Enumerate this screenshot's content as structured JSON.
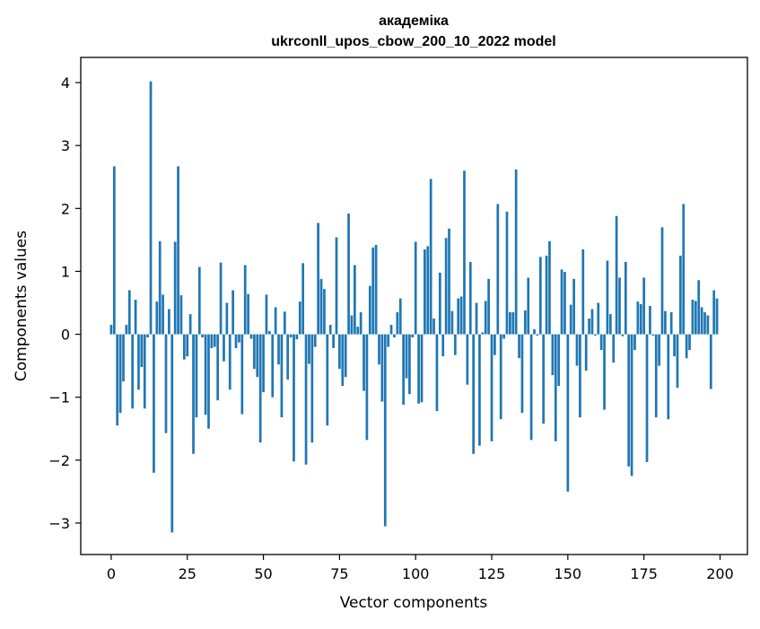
{
  "chart_data": {
    "type": "bar",
    "title_line1": "академіка",
    "title_line2": "ukrconll_upos_cbow_200_10_2022 model",
    "xlabel": "Vector components",
    "ylabel": "Components values",
    "xlim": [
      -10,
      209
    ],
    "ylim": [
      -3.5,
      4.4
    ],
    "xticks": [
      0,
      25,
      50,
      75,
      100,
      125,
      150,
      175,
      200
    ],
    "xtick_labels": [
      "0",
      "25",
      "50",
      "75",
      "100",
      "125",
      "150",
      "175",
      "200"
    ],
    "yticks": [
      -3,
      -2,
      -1,
      0,
      1,
      2,
      3,
      4
    ],
    "ytick_labels": [
      "−3",
      "−2",
      "−1",
      "0",
      "1",
      "2",
      "3",
      "4"
    ],
    "grid": false,
    "bar_color": "#1f77b4",
    "values": [
      0.15,
      2.67,
      -1.45,
      -1.25,
      -0.75,
      0.15,
      0.7,
      -1.18,
      0.55,
      -0.88,
      -0.52,
      -1.18,
      -0.05,
      4.02,
      -2.2,
      0.52,
      1.48,
      0.63,
      -1.57,
      0.4,
      -3.15,
      1.47,
      2.67,
      0.62,
      -0.4,
      -0.35,
      0.32,
      -1.9,
      -1.32,
      1.07,
      -0.05,
      -1.28,
      -1.5,
      -0.22,
      -0.2,
      -1.05,
      1.14,
      -0.43,
      0.5,
      -0.88,
      0.7,
      -0.22,
      -0.13,
      -1.27,
      1.1,
      0.64,
      -0.07,
      -0.55,
      -0.68,
      -1.72,
      -0.92,
      0.63,
      0.05,
      -1.0,
      0.43,
      -0.48,
      -1.32,
      0.36,
      -0.72,
      -0.05,
      -2.02,
      -0.08,
      0.52,
      1.13,
      -2.07,
      -0.47,
      -1.72,
      -0.2,
      1.77,
      0.88,
      0.72,
      -1.45,
      0.15,
      -0.22,
      1.54,
      -0.55,
      -0.82,
      -0.68,
      1.92,
      0.3,
      1.1,
      0.12,
      0.35,
      -0.9,
      -1.68,
      0.77,
      1.38,
      1.42,
      -0.48,
      -1.07,
      -3.05,
      -0.2,
      0.15,
      -0.05,
      0.35,
      0.57,
      -1.12,
      -0.7,
      -0.95,
      -0.05,
      1.47,
      -1.1,
      -1.08,
      1.35,
      1.4,
      2.47,
      0.25,
      -1.22,
      0.98,
      -0.35,
      1.53,
      1.68,
      0.37,
      -0.33,
      0.57,
      0.6,
      2.6,
      -0.8,
      1.15,
      -1.9,
      0.5,
      -1.77,
      0.03,
      0.53,
      0.88,
      -1.7,
      -0.33,
      2.07,
      -1.35,
      -0.07,
      1.95,
      0.35,
      0.35,
      2.62,
      -0.38,
      -1.25,
      0.38,
      0.9,
      -1.68,
      0.08,
      -0.02,
      1.23,
      -1.42,
      1.25,
      1.48,
      -0.65,
      -1.7,
      -0.82,
      1.03,
      0.99,
      -2.5,
      0.47,
      0.88,
      -0.5,
      -1.32,
      1.35,
      -0.58,
      0.25,
      0.4,
      -0.02,
      0.5,
      -0.25,
      -1.2,
      1.17,
      0.32,
      -0.45,
      1.88,
      0.9,
      -0.03,
      1.15,
      -2.1,
      -2.25,
      -0.25,
      0.52,
      0.48,
      0.9,
      -2.03,
      0.45,
      -0.02,
      -1.32,
      -0.5,
      1.7,
      0.37,
      -1.35,
      0.35,
      -0.35,
      -0.85,
      1.25,
      2.07,
      -0.38,
      -0.25,
      0.55,
      0.53,
      0.86,
      0.43,
      0.35,
      0.3,
      -0.87,
      0.7,
      0.57
    ]
  }
}
